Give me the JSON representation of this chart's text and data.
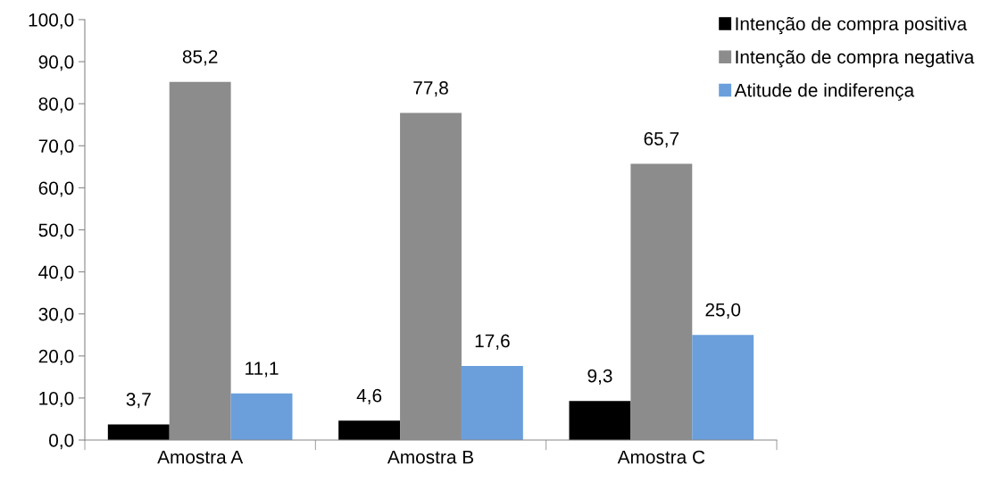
{
  "chart_data": {
    "type": "bar",
    "categories": [
      "Amostra A",
      "Amostra B",
      "Amostra C"
    ],
    "series": [
      {
        "name": "Intenção de compra positiva",
        "color": "#000000",
        "values": [
          3.7,
          4.6,
          9.3
        ],
        "value_labels": [
          "3,7",
          "4,6",
          "9,3"
        ]
      },
      {
        "name": "Intenção de compra negativa",
        "color": "#8c8c8c",
        "values": [
          85.2,
          77.8,
          65.7
        ],
        "value_labels": [
          "85,2",
          "77,8",
          "65,7"
        ]
      },
      {
        "name": "Atitude de indiferença",
        "color": "#6a9fdc",
        "values": [
          11.1,
          17.6,
          25.0
        ],
        "value_labels": [
          "11,1",
          "17,6",
          "25,0"
        ]
      }
    ],
    "ylim": [
      0,
      100
    ],
    "yticks": [
      {
        "value": 0,
        "label": "0,0"
      },
      {
        "value": 10,
        "label": "10,0"
      },
      {
        "value": 20,
        "label": "20,0"
      },
      {
        "value": 30,
        "label": "30,0"
      },
      {
        "value": 40,
        "label": "40,0"
      },
      {
        "value": 50,
        "label": "50,0"
      },
      {
        "value": 60,
        "label": "60,0"
      },
      {
        "value": 70,
        "label": "70,0"
      },
      {
        "value": 80,
        "label": "80,0"
      },
      {
        "value": 90,
        "label": "90,0"
      },
      {
        "value": 100,
        "label": "100,0"
      }
    ],
    "grid": false,
    "legend": "top right"
  }
}
